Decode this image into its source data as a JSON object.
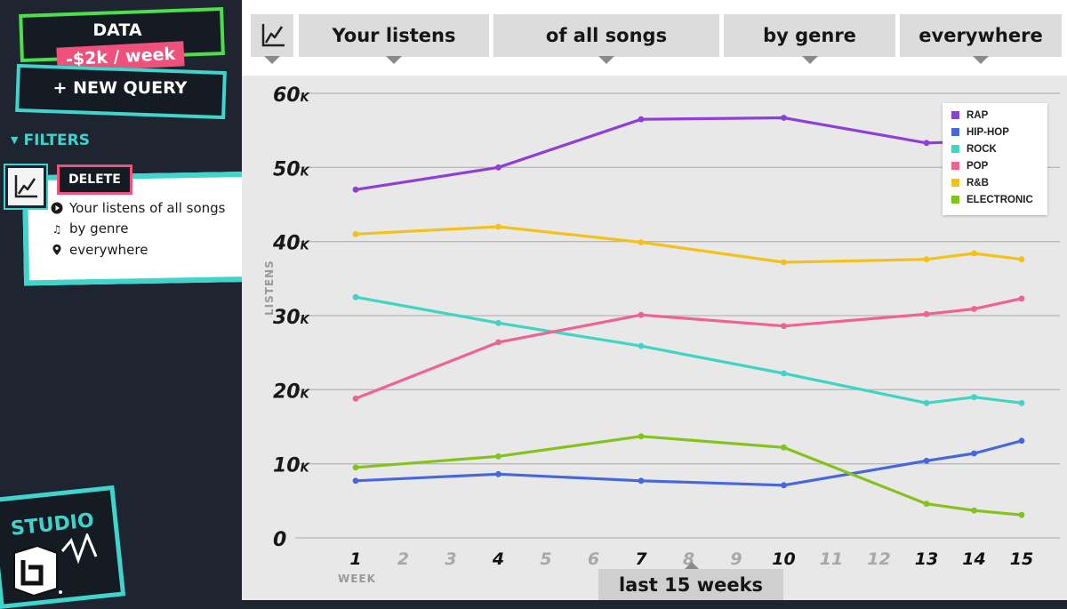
{
  "sidebar": {
    "data_label": "DATA",
    "cost_label": "-$2k / week",
    "new_query_label": "+ NEW QUERY",
    "filters_heading": "FILTERS",
    "filter_card": {
      "delete_label": "DELETE",
      "lines": [
        {
          "icon": "play-circle-icon",
          "text": "Your listens of all songs"
        },
        {
          "icon": "music-note-icon",
          "text": "by genre"
        },
        {
          "icon": "location-pin-icon",
          "text": "everywhere"
        }
      ]
    },
    "logo_text": "STUDIO"
  },
  "topbar": {
    "icon": "line-chart-icon",
    "chips": [
      "Your listens",
      "of all songs",
      "by genre",
      "everywhere"
    ]
  },
  "range_label": "last 15 weeks",
  "colors": {
    "rap": "#8f3ed8",
    "hiphop": "#4867db",
    "rock": "#3fd5c4",
    "pop": "#f06292",
    "rnb": "#f2c21b",
    "electronic": "#84c31b",
    "accent_teal": "#3fd5cd",
    "accent_green": "#4be04b",
    "accent_pink": "#f0507c"
  },
  "chart_data": {
    "type": "line",
    "ylabel": "LISTENS",
    "xlabel": "WEEK",
    "x": [
      1,
      2,
      3,
      4,
      5,
      6,
      7,
      8,
      9,
      10,
      11,
      12,
      13,
      14,
      15
    ],
    "x_bold": [
      1,
      4,
      7,
      10,
      13,
      14,
      15
    ],
    "y_ticks": [
      {
        "value": 0,
        "label": "0",
        "suffix": ""
      },
      {
        "value": 10000,
        "label": "10",
        "suffix": "K"
      },
      {
        "value": 20000,
        "label": "20",
        "suffix": "K"
      },
      {
        "value": 30000,
        "label": "30",
        "suffix": "K"
      },
      {
        "value": 40000,
        "label": "40",
        "suffix": "K"
      },
      {
        "value": 50000,
        "label": "50",
        "suffix": "K"
      },
      {
        "value": 60000,
        "label": "60",
        "suffix": "K"
      }
    ],
    "ylim": [
      0,
      60000
    ],
    "legend_position": "top-right",
    "series": [
      {
        "name": "RAP",
        "color": "#8f3ed8",
        "points": [
          [
            1,
            47000
          ],
          [
            4,
            50000
          ],
          [
            7,
            56500
          ],
          [
            10,
            56700
          ],
          [
            13,
            53300
          ],
          [
            14,
            53500
          ],
          [
            15,
            53500
          ]
        ]
      },
      {
        "name": "HIP-HOP",
        "color": "#4867db",
        "points": [
          [
            1,
            7700
          ],
          [
            4,
            8600
          ],
          [
            7,
            7700
          ],
          [
            10,
            7100
          ],
          [
            13,
            10400
          ],
          [
            14,
            11400
          ],
          [
            15,
            13100
          ]
        ]
      },
      {
        "name": "ROCK",
        "color": "#3fd5c4",
        "points": [
          [
            1,
            32500
          ],
          [
            4,
            29000
          ],
          [
            7,
            25900
          ],
          [
            10,
            22200
          ],
          [
            13,
            18200
          ],
          [
            14,
            19000
          ],
          [
            15,
            18200
          ]
        ]
      },
      {
        "name": "POP",
        "color": "#f06292",
        "points": [
          [
            1,
            18800
          ],
          [
            4,
            26400
          ],
          [
            7,
            30100
          ],
          [
            10,
            28600
          ],
          [
            13,
            30200
          ],
          [
            14,
            30900
          ],
          [
            15,
            32300
          ]
        ]
      },
      {
        "name": "R&B",
        "color": "#f2c21b",
        "points": [
          [
            1,
            41000
          ],
          [
            4,
            42000
          ],
          [
            7,
            39900
          ],
          [
            10,
            37200
          ],
          [
            13,
            37600
          ],
          [
            14,
            38400
          ],
          [
            15,
            37600
          ]
        ]
      },
      {
        "name": "ELECTRONIC",
        "color": "#84c31b",
        "points": [
          [
            1,
            9500
          ],
          [
            4,
            11000
          ],
          [
            7,
            13700
          ],
          [
            10,
            12200
          ],
          [
            13,
            4600
          ],
          [
            14,
            3700
          ],
          [
            15,
            3100
          ]
        ]
      }
    ]
  }
}
